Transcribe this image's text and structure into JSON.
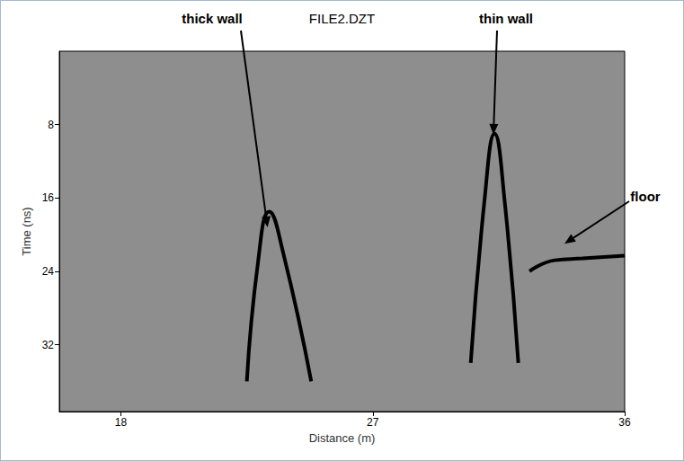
{
  "chart_data": {
    "type": "radargram",
    "title": "FILE2.DZT",
    "x_label": "Distance (m)",
    "y_label": "Time (ns)",
    "xlim": [
      15.8,
      36
    ],
    "xticks": [
      18,
      27,
      36
    ],
    "ylim": [
      0,
      39.3
    ],
    "yticks": [
      8,
      16,
      24,
      32
    ],
    "grid": false,
    "series": [
      {
        "type": "line",
        "color": "#000000",
        "x": [
          22.5,
          22.9,
          23.3,
          23.8,
          24.8
        ],
        "values": [
          36,
          23,
          17.5,
          22,
          36
        ]
      },
      {
        "type": "line",
        "color": "#000000",
        "x": [
          30.5,
          31.0,
          31.35,
          31.7,
          32.2
        ],
        "values": [
          34,
          16,
          9,
          16,
          34
        ]
      },
      {
        "type": "line",
        "color": "#000000",
        "x": [
          32.6,
          33.5,
          34.5,
          36
        ],
        "values": [
          24,
          22.8,
          22.6,
          22.3
        ]
      }
    ],
    "annotations": [
      {
        "text": "thick wall",
        "x": 23.24,
        "y": 19.2
      },
      {
        "text": "thin wall",
        "x": 31.31,
        "y": 9.1
      },
      {
        "text": "floor",
        "x": 33.85,
        "y": 21.0
      }
    ]
  }
}
